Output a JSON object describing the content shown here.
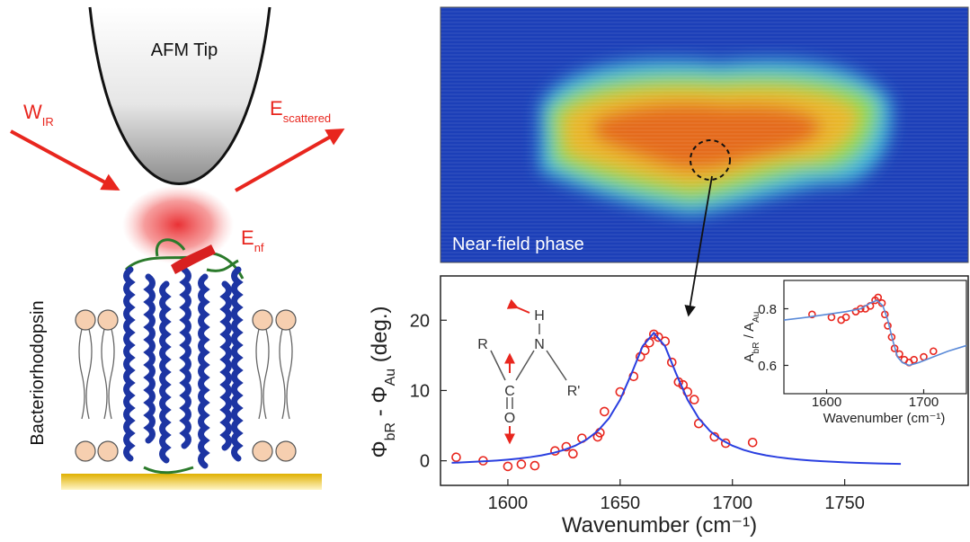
{
  "diagram": {
    "tip_label": "AFM Tip",
    "incident_label": [
      {
        "text": "W"
      },
      {
        "text": "IR",
        "sub": true
      }
    ],
    "scattered_label": [
      {
        "text": "E"
      },
      {
        "text": "scattered",
        "sub": true
      }
    ],
    "nearfield_label": [
      {
        "text": "E"
      },
      {
        "text": "nf",
        "sub": true
      }
    ],
    "protein_label": "Bacteriorhodopsin"
  },
  "image": {
    "label": "Near-field phase"
  },
  "molecule": {
    "labels": [
      "H",
      "N",
      "R",
      "C",
      "R'",
      "O"
    ]
  },
  "chart_data": [
    {
      "type": "scatter",
      "xlabel": "Wavenumber (cm⁻¹)",
      "ylabel": [
        {
          "text": "Φ"
        },
        {
          "text": "bR",
          "sub": true
        },
        {
          "text": " - Φ"
        },
        {
          "text": "Au",
          "sub": true
        },
        {
          "text": " (deg.)"
        }
      ],
      "xlim": [
        1570,
        1805
      ],
      "ylim": [
        -3.5,
        26.3
      ],
      "xticks": [
        1600,
        1650,
        1700,
        1750
      ],
      "yticks": [
        0,
        10,
        20
      ],
      "series": [
        {
          "mode": "markers",
          "color": "#e8261e",
          "x": [
            1577,
            1589,
            1600,
            1606,
            1612,
            1621,
            1626,
            1629,
            1633,
            1640,
            1641,
            1643,
            1650,
            1656,
            1659,
            1661,
            1663,
            1665,
            1667,
            1670,
            1673,
            1676,
            1678,
            1680,
            1683,
            1685,
            1692,
            1697,
            1709
          ],
          "values": [
            0.5,
            0,
            -0.8,
            -0.5,
            -0.7,
            1.4,
            2.0,
            1.0,
            3.2,
            3.4,
            4.0,
            7.0,
            9.8,
            12.0,
            14.8,
            15.7,
            16.8,
            18.0,
            17.6,
            17.0,
            14.0,
            11.2,
            10.8,
            9.8,
            8.7,
            5.3,
            3.4,
            2.5,
            2.6
          ]
        },
        {
          "mode": "line",
          "color": "#2a3fe0",
          "x": [
            1575,
            1580,
            1585,
            1590,
            1595,
            1600,
            1605,
            1610,
            1615,
            1620,
            1625,
            1630,
            1635,
            1640,
            1645,
            1650,
            1655,
            1660,
            1665,
            1670,
            1675,
            1680,
            1685,
            1690,
            1695,
            1700,
            1705,
            1710,
            1715,
            1720,
            1725,
            1730,
            1735,
            1740,
            1745,
            1750,
            1755,
            1760,
            1765,
            1770,
            1775
          ],
          "values": [
            -0.29,
            -0.23,
            -0.15,
            -0.07,
            0.03,
            0.16,
            0.32,
            0.52,
            0.77,
            1.1,
            1.54,
            2.15,
            3.0,
            4.23,
            6.04,
            8.7,
            12.35,
            16.3,
            18.2,
            16.3,
            12.35,
            8.7,
            6.04,
            4.23,
            3.0,
            2.15,
            1.54,
            1.1,
            0.77,
            0.52,
            0.32,
            0.16,
            0.03,
            -0.07,
            -0.15,
            -0.23,
            -0.29,
            -0.34,
            -0.38,
            -0.42,
            -0.45
          ]
        }
      ]
    },
    {
      "type": "scatter",
      "xlabel": "Wavenumber (cm⁻¹)",
      "ylabel": [
        {
          "text": "A"
        },
        {
          "text": "bR",
          "sub": true
        },
        {
          "text": " / A"
        },
        {
          "text": "Au",
          "sub": true
        }
      ],
      "xlim": [
        1556,
        1744
      ],
      "ylim": [
        0.5,
        0.9
      ],
      "xticks": [
        1600,
        1700
      ],
      "yticks": [
        0.6,
        0.8
      ],
      "series": [
        {
          "mode": "markers",
          "color": "#e8261e",
          "x": [
            1585,
            1605,
            1615,
            1620,
            1630,
            1635,
            1640,
            1645,
            1650,
            1653,
            1657,
            1660,
            1663,
            1667,
            1670,
            1675,
            1680,
            1685,
            1690,
            1700,
            1710
          ],
          "values": [
            0.78,
            0.77,
            0.76,
            0.77,
            0.79,
            0.8,
            0.8,
            0.81,
            0.83,
            0.84,
            0.82,
            0.78,
            0.74,
            0.7,
            0.66,
            0.64,
            0.62,
            0.61,
            0.62,
            0.63,
            0.65
          ]
        },
        {
          "mode": "line",
          "color": "#5a8ad8",
          "x": [
            1556,
            1580,
            1600,
            1620,
            1635,
            1645,
            1652,
            1658,
            1663,
            1668,
            1673,
            1678,
            1685,
            1695,
            1710,
            1725,
            1744
          ],
          "values": [
            0.76,
            0.77,
            0.78,
            0.79,
            0.8,
            0.82,
            0.83,
            0.81,
            0.76,
            0.69,
            0.63,
            0.61,
            0.6,
            0.61,
            0.63,
            0.65,
            0.67
          ]
        }
      ]
    }
  ]
}
